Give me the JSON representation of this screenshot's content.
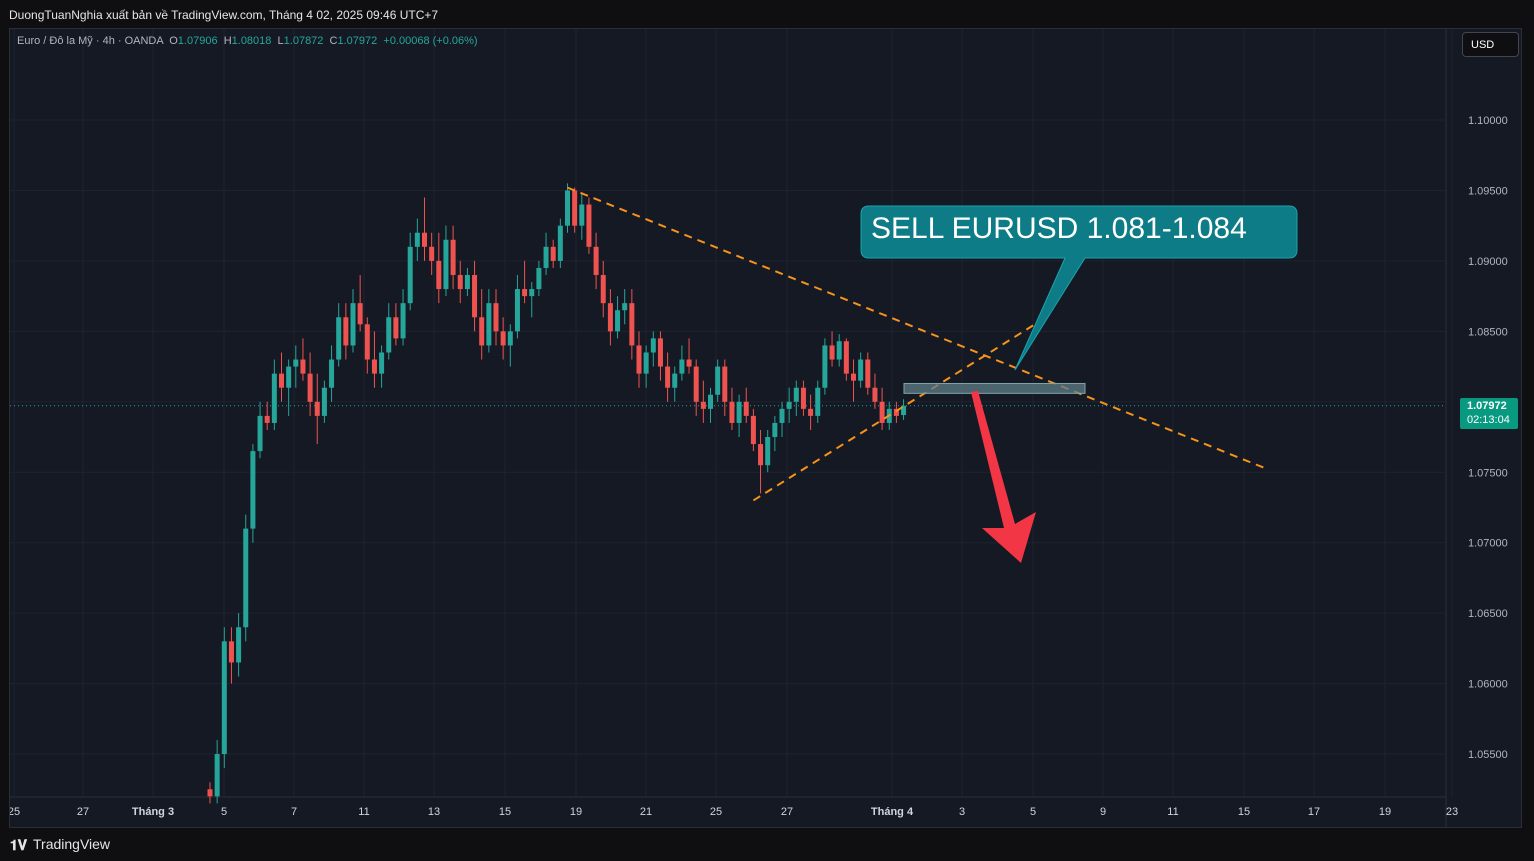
{
  "header": {
    "publisher_line": "DuongTuanNghia xuất bản về TradingView.com, Tháng 4 02, 2025 09:46 UTC+7"
  },
  "legend": {
    "symbol": "Euro / Đô la Mỹ · 4h · OANDA",
    "o_label": "O",
    "o_value": "1.07906",
    "h_label": "H",
    "h_value": "1.08018",
    "l_label": "L",
    "l_value": "1.07872",
    "c_label": "C",
    "c_value": "1.07972",
    "change": "+0.00068 (+0.06%)"
  },
  "currency_button": "USD",
  "last_price": {
    "price": "1.07972",
    "countdown": "02:13:04"
  },
  "annotation": {
    "text": "SELL EURUSD 1.081-1.084"
  },
  "footer": {
    "brand": "TradingView",
    "logo_icon": "tradingview-logo-icon"
  },
  "colors": {
    "up": "#26a69a",
    "down": "#ef5350",
    "trendline": "#f7931a",
    "callout": "#0e7c86",
    "arrow": "#f23645",
    "zone": "#5f7d86"
  },
  "chart_data": {
    "type": "candlestick",
    "symbol": "EURUSD",
    "timeframe": "4h",
    "ylim": [
      1.052,
      1.104
    ],
    "y_ticks": [
      "1.10000",
      "1.09500",
      "1.09000",
      "1.08500",
      "1.08000",
      "1.07500",
      "1.07000",
      "1.06500",
      "1.06000",
      "1.05500"
    ],
    "x_ticks": [
      "25",
      "27",
      "Tháng 3",
      "5",
      "7",
      "11",
      "13",
      "15",
      "19",
      "21",
      "25",
      "27",
      "Tháng 4",
      "3",
      "5",
      "9",
      "11",
      "15",
      "17",
      "19",
      "23"
    ],
    "last_price": 1.07972,
    "candles": [
      [
        1.0525,
        1.053,
        1.0515,
        1.052
      ],
      [
        1.052,
        1.056,
        1.0515,
        1.055
      ],
      [
        1.055,
        1.064,
        1.054,
        1.063
      ],
      [
        1.063,
        1.064,
        1.06,
        1.0615
      ],
      [
        1.0615,
        1.065,
        1.0605,
        1.064
      ],
      [
        1.064,
        1.072,
        1.063,
        1.071
      ],
      [
        1.071,
        1.077,
        1.07,
        1.0765
      ],
      [
        1.0765,
        1.08,
        1.076,
        1.079
      ],
      [
        1.079,
        1.08,
        1.078,
        1.0785
      ],
      [
        1.0785,
        1.083,
        1.078,
        1.082
      ],
      [
        1.082,
        1.0835,
        1.08,
        1.081
      ],
      [
        1.081,
        1.083,
        1.079,
        1.0825
      ],
      [
        1.0825,
        1.084,
        1.081,
        1.083
      ],
      [
        1.083,
        1.0845,
        1.0815,
        1.082
      ],
      [
        1.082,
        1.0835,
        1.079,
        1.08
      ],
      [
        1.08,
        1.082,
        1.077,
        1.079
      ],
      [
        1.079,
        1.0815,
        1.0785,
        1.081
      ],
      [
        1.081,
        1.084,
        1.08,
        1.083
      ],
      [
        1.083,
        1.087,
        1.0825,
        1.086
      ],
      [
        1.086,
        1.087,
        1.083,
        1.084
      ],
      [
        1.084,
        1.088,
        1.0835,
        1.087
      ],
      [
        1.087,
        1.089,
        1.085,
        1.0855
      ],
      [
        1.0855,
        1.086,
        1.082,
        1.083
      ],
      [
        1.083,
        1.085,
        1.081,
        1.082
      ],
      [
        1.082,
        1.084,
        1.081,
        1.0835
      ],
      [
        1.0835,
        1.087,
        1.083,
        1.086
      ],
      [
        1.086,
        1.087,
        1.084,
        1.0845
      ],
      [
        1.0845,
        1.088,
        1.084,
        1.087
      ],
      [
        1.087,
        1.092,
        1.0865,
        1.091
      ],
      [
        1.091,
        1.093,
        1.09,
        1.092
      ],
      [
        1.092,
        1.0945,
        1.09,
        1.091
      ],
      [
        1.091,
        1.092,
        1.089,
        1.09
      ],
      [
        1.09,
        1.092,
        1.087,
        1.088
      ],
      [
        1.088,
        1.0925,
        1.0875,
        1.0915
      ],
      [
        1.0915,
        1.0925,
        1.088,
        1.089
      ],
      [
        1.089,
        1.09,
        1.087,
        1.088
      ],
      [
        1.088,
        1.0895,
        1.0875,
        1.089
      ],
      [
        1.089,
        1.09,
        1.085,
        1.086
      ],
      [
        1.086,
        1.088,
        1.083,
        1.084
      ],
      [
        1.084,
        1.088,
        1.0835,
        1.087
      ],
      [
        1.087,
        1.088,
        1.084,
        1.085
      ],
      [
        1.085,
        1.086,
        1.083,
        1.084
      ],
      [
        1.084,
        1.0855,
        1.0825,
        1.085
      ],
      [
        1.085,
        1.089,
        1.0845,
        1.088
      ],
      [
        1.088,
        1.09,
        1.087,
        1.0875
      ],
      [
        1.0875,
        1.0885,
        1.086,
        1.088
      ],
      [
        1.088,
        1.09,
        1.0875,
        1.0895
      ],
      [
        1.0895,
        1.092,
        1.089,
        1.091
      ],
      [
        1.091,
        1.0915,
        1.0895,
        1.09
      ],
      [
        1.09,
        1.093,
        1.0895,
        1.0925
      ],
      [
        1.0925,
        1.0955,
        1.092,
        1.095
      ],
      [
        1.095,
        1.0952,
        1.092,
        1.0925
      ],
      [
        1.0925,
        1.0948,
        1.0915,
        1.094
      ],
      [
        1.094,
        1.0945,
        1.0905,
        1.091
      ],
      [
        1.091,
        1.092,
        1.088,
        1.089
      ],
      [
        1.089,
        1.09,
        1.086,
        1.087
      ],
      [
        1.087,
        1.088,
        1.084,
        1.085
      ],
      [
        1.085,
        1.0875,
        1.0845,
        1.0865
      ],
      [
        1.0865,
        1.088,
        1.0855,
        1.087
      ],
      [
        1.087,
        1.088,
        1.083,
        1.084
      ],
      [
        1.084,
        1.085,
        1.081,
        1.082
      ],
      [
        1.082,
        1.084,
        1.081,
        1.0835
      ],
      [
        1.0835,
        1.085,
        1.0825,
        1.0845
      ],
      [
        1.0845,
        1.085,
        1.0815,
        1.0825
      ],
      [
        1.0825,
        1.0835,
        1.08,
        1.081
      ],
      [
        1.081,
        1.0825,
        1.08,
        1.082
      ],
      [
        1.082,
        1.084,
        1.0815,
        1.083
      ],
      [
        1.083,
        1.0845,
        1.082,
        1.0825
      ],
      [
        1.0825,
        1.083,
        1.079,
        1.08
      ],
      [
        1.08,
        1.0815,
        1.0785,
        1.0795
      ],
      [
        1.0795,
        1.081,
        1.0785,
        1.0805
      ],
      [
        1.0805,
        1.083,
        1.08,
        1.0825
      ],
      [
        1.0825,
        1.083,
        1.079,
        1.08
      ],
      [
        1.08,
        1.081,
        1.078,
        1.0785
      ],
      [
        1.0785,
        1.0805,
        1.0775,
        1.08
      ],
      [
        1.08,
        1.081,
        1.0785,
        1.079
      ],
      [
        1.079,
        1.0795,
        1.0765,
        1.077
      ],
      [
        1.077,
        1.078,
        1.0735,
        1.0755
      ],
      [
        1.0755,
        1.078,
        1.075,
        1.0775
      ],
      [
        1.0775,
        1.079,
        1.0765,
        1.0785
      ],
      [
        1.0785,
        1.08,
        1.0775,
        1.0795
      ],
      [
        1.0795,
        1.081,
        1.0785,
        1.08
      ],
      [
        1.08,
        1.0815,
        1.079,
        1.081
      ],
      [
        1.081,
        1.0815,
        1.079,
        1.0795
      ],
      [
        1.0795,
        1.0805,
        1.078,
        1.079
      ],
      [
        1.079,
        1.0815,
        1.0785,
        1.081
      ],
      [
        1.081,
        1.0845,
        1.0805,
        1.084
      ],
      [
        1.084,
        1.085,
        1.0825,
        1.083
      ],
      [
        1.083,
        1.0848,
        1.0825,
        1.0843
      ],
      [
        1.0843,
        1.0845,
        1.0815,
        1.082
      ],
      [
        1.082,
        1.083,
        1.08,
        1.0815
      ],
      [
        1.0815,
        1.0835,
        1.081,
        1.083
      ],
      [
        1.083,
        1.0835,
        1.0805,
        1.081
      ],
      [
        1.081,
        1.082,
        1.0795,
        1.08
      ],
      [
        1.08,
        1.081,
        1.078,
        1.0785
      ],
      [
        1.0785,
        1.08,
        1.078,
        1.0795
      ],
      [
        1.0795,
        1.08,
        1.0785,
        1.079
      ],
      [
        1.07906,
        1.08018,
        1.07872,
        1.07972
      ]
    ],
    "trendlines": [
      {
        "kind": "resistance",
        "from": [
          50,
          1.0952
        ],
        "to": [
          148,
          1.0752
        ]
      },
      {
        "kind": "support",
        "from": [
          76,
          1.073
        ],
        "to": [
          116,
          1.0857
        ]
      }
    ],
    "sell_zone": [
      1.0806,
      1.0813
    ]
  }
}
